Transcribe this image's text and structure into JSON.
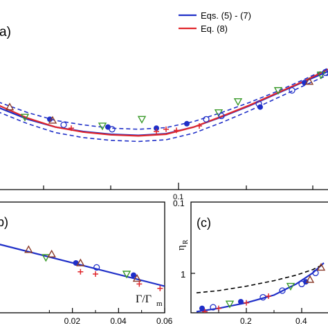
{
  "chart_data": [
    {
      "panel": "a",
      "panel_label": "a)",
      "type": "line",
      "legend_position": "top-right",
      "legend": [
        {
          "name": "Eqs. (5) - (7)",
          "color": "#1f2fc8"
        },
        {
          "name": "Eq. (8)",
          "color": "#e0262b"
        }
      ],
      "x_tick_labels": {
        "0.1": "0.1"
      },
      "ylim": [
        0,
        1
      ],
      "series": [
        {
          "name": "Eqs. (5) - (7)",
          "style": "solid",
          "color": "#1f2fc8",
          "points": [
            [
              -10,
              0.54
            ],
            [
              0,
              0.6
            ],
            [
              40,
              0.7
            ],
            [
              80,
              0.77
            ],
            [
              120,
              0.81
            ],
            [
              160,
              0.835
            ],
            [
              200,
              0.845
            ],
            [
              240,
              0.83
            ],
            [
              280,
              0.77
            ],
            [
              320,
              0.68
            ],
            [
              360,
              0.58
            ],
            [
              400,
              0.47
            ],
            [
              440,
              0.36
            ],
            [
              474,
              0.27
            ]
          ]
        },
        {
          "name": "Eq. (8)",
          "style": "solid",
          "color": "#e0262b",
          "points": [
            [
              -10,
              0.52
            ],
            [
              0,
              0.58
            ],
            [
              40,
              0.69
            ],
            [
              80,
              0.77
            ],
            [
              120,
              0.815
            ],
            [
              160,
              0.84
            ],
            [
              200,
              0.85
            ],
            [
              240,
              0.835
            ],
            [
              280,
              0.77
            ],
            [
              320,
              0.675
            ],
            [
              360,
              0.575
            ],
            [
              400,
              0.465
            ],
            [
              440,
              0.355
            ],
            [
              474,
              0.25
            ]
          ]
        },
        {
          "name": "upper band",
          "style": "dashed",
          "color": "#1f2fc8",
          "points": [
            [
              -10,
              0.5
            ],
            [
              0,
              0.55
            ],
            [
              40,
              0.64
            ],
            [
              80,
              0.71
            ],
            [
              120,
              0.75
            ],
            [
              160,
              0.78
            ],
            [
              200,
              0.79
            ],
            [
              240,
              0.775
            ],
            [
              280,
              0.72
            ],
            [
              320,
              0.64
            ],
            [
              360,
              0.55
            ],
            [
              400,
              0.45
            ],
            [
              440,
              0.34
            ],
            [
              474,
              0.24
            ]
          ]
        },
        {
          "name": "lower band",
          "style": "dashed",
          "color": "#1f2fc8",
          "points": [
            [
              -10,
              0.58
            ],
            [
              0,
              0.64
            ],
            [
              40,
              0.74
            ],
            [
              80,
              0.82
            ],
            [
              120,
              0.865
            ],
            [
              160,
              0.89
            ],
            [
              200,
              0.9
            ],
            [
              240,
              0.885
            ],
            [
              280,
              0.825
            ],
            [
              320,
              0.73
            ],
            [
              360,
              0.625
            ],
            [
              400,
              0.51
            ],
            [
              440,
              0.395
            ],
            [
              474,
              0.3
            ]
          ]
        }
      ],
      "markers": [
        {
          "shape": "triangle-up",
          "x": 14,
          "y": 0.59
        },
        {
          "shape": "triangle-down",
          "x": 36,
          "y": 0.68
        },
        {
          "shape": "circle-filled",
          "x": 72,
          "y": 0.7
        },
        {
          "shape": "triangle-up",
          "x": 76,
          "y": 0.71
        },
        {
          "shape": "circle-open",
          "x": 92,
          "y": 0.75
        },
        {
          "shape": "plus",
          "x": 103,
          "y": 0.78
        },
        {
          "shape": "triangle-down",
          "x": 148,
          "y": 0.76
        },
        {
          "shape": "circle-filled",
          "x": 156,
          "y": 0.77
        },
        {
          "shape": "circle-open",
          "x": 162,
          "y": 0.79
        },
        {
          "shape": "triangle-down",
          "x": 205,
          "y": 0.7
        },
        {
          "shape": "circle-filled",
          "x": 226,
          "y": 0.78
        },
        {
          "shape": "plus",
          "x": 226,
          "y": 0.81
        },
        {
          "shape": "plus",
          "x": 240,
          "y": 0.79
        },
        {
          "shape": "plus",
          "x": 255,
          "y": 0.8
        },
        {
          "shape": "circle-filled",
          "x": 270,
          "y": 0.74
        },
        {
          "shape": "plus",
          "x": 288,
          "y": 0.76
        },
        {
          "shape": "circle-open",
          "x": 298,
          "y": 0.7
        },
        {
          "shape": "triangle-down",
          "x": 316,
          "y": 0.64
        },
        {
          "shape": "circle-open",
          "x": 320,
          "y": 0.67
        },
        {
          "shape": "triangle-down",
          "x": 344,
          "y": 0.54
        },
        {
          "shape": "circle-open",
          "x": 374,
          "y": 0.56
        },
        {
          "shape": "circle-filled",
          "x": 376,
          "y": 0.59
        },
        {
          "shape": "triangle-down",
          "x": 402,
          "y": 0.44
        },
        {
          "shape": "circle-open",
          "x": 422,
          "y": 0.44
        },
        {
          "shape": "circle-filled",
          "x": 440,
          "y": 0.37
        },
        {
          "shape": "triangle-up",
          "x": 447,
          "y": 0.36
        },
        {
          "shape": "triangle-down",
          "x": 464,
          "y": 0.3
        },
        {
          "shape": "circle-open",
          "x": 470,
          "y": 0.28
        }
      ]
    },
    {
      "panel": "b",
      "panel_label": "b)",
      "type": "line",
      "xlabel": "Γ/Γ",
      "xlabel_sub": "m",
      "xlim": [
        0,
        0.06
      ],
      "x_ticks": [
        0.02,
        0.04,
        0.06
      ],
      "x_tick_labels": [
        "0.02",
        "0.04",
        "0.06"
      ],
      "ylim": [
        0,
        1
      ],
      "series": [
        {
          "name": "fit",
          "style": "solid",
          "color": "#1f2fc8",
          "points": [
            [
              -0.012,
              0.38
            ],
            [
              0.06,
              0.76
            ]
          ]
        }
      ],
      "markers": [
        {
          "shape": "triangle-up",
          "x": 0.001,
          "y": 0.43
        },
        {
          "shape": "triangle-down",
          "x": 0.0085,
          "y": 0.5
        },
        {
          "shape": "triangle-up",
          "x": 0.011,
          "y": 0.47
        },
        {
          "shape": "circle-filled",
          "x": 0.0215,
          "y": 0.55
        },
        {
          "shape": "triangle-up",
          "x": 0.0235,
          "y": 0.55
        },
        {
          "shape": "plus",
          "x": 0.0235,
          "y": 0.63
        },
        {
          "shape": "circle-open",
          "x": 0.0305,
          "y": 0.59
        },
        {
          "shape": "plus",
          "x": 0.03,
          "y": 0.65
        },
        {
          "shape": "triangle-down",
          "x": 0.0435,
          "y": 0.65
        },
        {
          "shape": "circle-filled",
          "x": 0.0465,
          "y": 0.66
        },
        {
          "shape": "triangle-up",
          "x": 0.048,
          "y": 0.69
        },
        {
          "shape": "plus",
          "x": 0.049,
          "y": 0.74
        },
        {
          "shape": "plus",
          "x": 0.058,
          "y": 0.78
        }
      ]
    },
    {
      "panel": "c",
      "panel_label": "(c)",
      "type": "line",
      "ylabel": "η",
      "ylabel_sub": "R",
      "xlim": [
        0,
        0.5
      ],
      "x_ticks": [
        0.2,
        0.4
      ],
      "x_tick_labels": [
        "0.2",
        "0.4"
      ],
      "y_tick_labels": {
        "0.1": "0.1",
        "1": "1"
      },
      "ylim": [
        0,
        1
      ],
      "series": [
        {
          "name": "fit",
          "style": "solid",
          "color": "#1f2fc8",
          "points": [
            [
              0.02,
              0.99
            ],
            [
              0.1,
              0.96
            ],
            [
              0.2,
              0.91
            ],
            [
              0.3,
              0.84
            ],
            [
              0.38,
              0.74
            ],
            [
              0.44,
              0.64
            ],
            [
              0.48,
              0.55
            ]
          ]
        },
        {
          "name": "asymptote",
          "style": "dashed",
          "color": "#000000",
          "points": [
            [
              0.02,
              0.82
            ],
            [
              0.1,
              0.8
            ],
            [
              0.2,
              0.76
            ],
            [
              0.3,
              0.71
            ],
            [
              0.38,
              0.66
            ],
            [
              0.44,
              0.61
            ],
            [
              0.48,
              0.56
            ]
          ]
        }
      ],
      "markers": [
        {
          "shape": "circle-filled",
          "x": 0.04,
          "y": 0.96
        },
        {
          "shape": "plus",
          "x": 0.05,
          "y": 0.99
        },
        {
          "shape": "circle-open",
          "x": 0.08,
          "y": 0.95
        },
        {
          "shape": "plus",
          "x": 0.1,
          "y": 0.96
        },
        {
          "shape": "triangle-down",
          "x": 0.14,
          "y": 0.92
        },
        {
          "shape": "circle-filled",
          "x": 0.18,
          "y": 0.9
        },
        {
          "shape": "plus",
          "x": 0.2,
          "y": 0.91
        },
        {
          "shape": "circle-open",
          "x": 0.26,
          "y": 0.86
        },
        {
          "shape": "plus",
          "x": 0.28,
          "y": 0.85
        },
        {
          "shape": "circle-open",
          "x": 0.33,
          "y": 0.8
        },
        {
          "shape": "triangle-down",
          "x": 0.36,
          "y": 0.76
        },
        {
          "shape": "circle-open",
          "x": 0.4,
          "y": 0.74
        },
        {
          "shape": "circle-filled",
          "x": 0.415,
          "y": 0.72
        },
        {
          "shape": "triangle-up",
          "x": 0.43,
          "y": 0.7
        },
        {
          "shape": "circle-open",
          "x": 0.45,
          "y": 0.64
        },
        {
          "shape": "triangle-up",
          "x": 0.47,
          "y": 0.59
        }
      ]
    }
  ],
  "colors": {
    "blue": "#1f2fc8",
    "red": "#e0262b",
    "green": "#3a9a2a",
    "brown": "#8a3b2a",
    "black": "#000000"
  }
}
